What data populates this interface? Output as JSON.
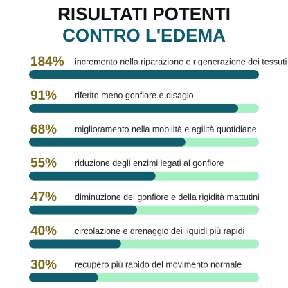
{
  "chart_data": {
    "type": "bar",
    "orientation": "horizontal",
    "title": "RISULTATI POTENTI",
    "subtitle": "CONTRO L'EDEMA",
    "categories": [
      "incremento nella riparazione e rigenerazione dei tessuti",
      "riferito meno gonfiore e disagio",
      "miglioramento nella mobilità e agilità quotidiane",
      "riduzione degli enzimi legati al gonfiore",
      "diminuzione del gonfiore e della rigidità mattutini",
      "circolazione e drenaggio dei liquidi più rapidi",
      "recupero più rapido del movimento normale"
    ],
    "values": [
      184,
      91,
      68,
      55,
      47,
      40,
      30
    ],
    "value_labels": [
      "184%",
      "91%",
      "68%",
      "55%",
      "47%",
      "40%",
      "30%"
    ],
    "xlim": [
      0,
      100
    ],
    "color": "#115e6e",
    "track_color": "#a8efc4",
    "title_color": "#111111",
    "subtitle_color": "#0e5a6e"
  }
}
